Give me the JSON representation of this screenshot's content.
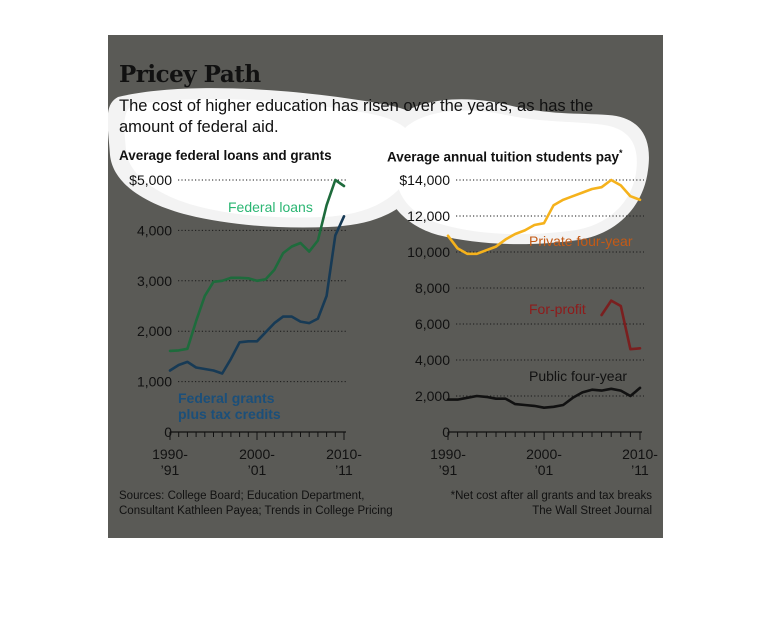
{
  "header": {
    "title": "Pricey Path",
    "subtitle": "The cost of higher education has risen over the years, as has the amount of federal aid."
  },
  "footer": {
    "sources_line1": "Sources: College Board; Education Department,",
    "sources_line2": "Consultant Kathleen Payea; Trends in College Pricing",
    "note_line1": "*Net cost after all grants and tax breaks",
    "note_line2": "The Wall Street Journal"
  },
  "colors": {
    "panel": "#5a5a56",
    "federal_loans": "#1e6b3c",
    "federal_grants": "#173a55",
    "private": "#f5b21c",
    "for_profit": "#7a1f1f",
    "public": "#111111",
    "label_loans": "#2bb673",
    "label_grants": "#1b4f7a",
    "label_private": "#c45a16",
    "label_forprofit": "#8f1a1a"
  },
  "chart_data": [
    {
      "type": "line",
      "title": "Average federal loans and grants",
      "x_ticks": [
        "1990-\n’91",
        "2000-\n’01",
        "2010-\n’11"
      ],
      "x_range": [
        1990,
        2010
      ],
      "ylim": [
        0,
        5000
      ],
      "y_ticks": [
        "0",
        "1,000",
        "2,000",
        "3,000",
        "4,000",
        "$5,000"
      ],
      "y_tick_values": [
        0,
        1000,
        2000,
        3000,
        4000,
        5000
      ],
      "grid": true,
      "series": [
        {
          "name": "Federal loans",
          "x": [
            1990,
            1991,
            1992,
            1993,
            1994,
            1995,
            1996,
            1997,
            1998,
            1999,
            2000,
            2001,
            2002,
            2003,
            2004,
            2005,
            2006,
            2007,
            2008,
            2009,
            2010
          ],
          "values": [
            1610,
            1620,
            1650,
            2200,
            2700,
            2980,
            3000,
            3060,
            3060,
            3050,
            3000,
            3030,
            3220,
            3550,
            3680,
            3750,
            3580,
            3800,
            4500,
            5000,
            4880
          ]
        },
        {
          "name": "Federal grants\nplus tax credits",
          "x": [
            1990,
            1991,
            1992,
            1993,
            1994,
            1995,
            1996,
            1997,
            1998,
            1999,
            2000,
            2001,
            2002,
            2003,
            2004,
            2005,
            2006,
            2007,
            2008,
            2009,
            2010
          ],
          "values": [
            1220,
            1330,
            1390,
            1280,
            1250,
            1220,
            1160,
            1450,
            1780,
            1800,
            1800,
            1980,
            2160,
            2290,
            2290,
            2190,
            2160,
            2250,
            2700,
            3900,
            4280
          ]
        }
      ]
    },
    {
      "type": "line",
      "title": "Average annual tuition students pay",
      "title_marker": "*",
      "x_ticks": [
        "1990-\n’91",
        "2000-\n’01",
        "2010-\n’11"
      ],
      "x_range": [
        1990,
        2010
      ],
      "ylim": [
        0,
        14000
      ],
      "y_ticks": [
        "0",
        "2,000",
        "4,000",
        "6,000",
        "8,000",
        "10,000",
        "12,000",
        "$14,000"
      ],
      "y_tick_values": [
        0,
        2000,
        4000,
        6000,
        8000,
        10000,
        12000,
        14000
      ],
      "grid": true,
      "series": [
        {
          "name": "Private four-year",
          "x": [
            1990,
            1991,
            1992,
            1993,
            1994,
            1995,
            1996,
            1997,
            1998,
            1999,
            2000,
            2001,
            2002,
            2003,
            2004,
            2005,
            2006,
            2007,
            2008,
            2009,
            2010
          ],
          "values": [
            10900,
            10200,
            9900,
            9900,
            10100,
            10300,
            10700,
            11000,
            11200,
            11500,
            11600,
            12600,
            12900,
            13100,
            13300,
            13500,
            13600,
            14000,
            13700,
            13100,
            12900
          ]
        },
        {
          "name": "For-profit",
          "x": [
            2006,
            2007,
            2008,
            2009,
            2010
          ],
          "values": [
            6500,
            7300,
            7000,
            4600,
            4650
          ]
        },
        {
          "name": "Public four-year",
          "x": [
            1990,
            1991,
            1992,
            1993,
            1994,
            1995,
            1996,
            1997,
            1998,
            1999,
            2000,
            2001,
            2002,
            2003,
            2004,
            2005,
            2006,
            2007,
            2008,
            2009,
            2010
          ],
          "values": [
            1800,
            1800,
            1900,
            2000,
            1950,
            1850,
            1850,
            1550,
            1500,
            1450,
            1350,
            1400,
            1500,
            1900,
            2200,
            2350,
            2300,
            2400,
            2300,
            2000,
            2450
          ]
        }
      ]
    }
  ]
}
